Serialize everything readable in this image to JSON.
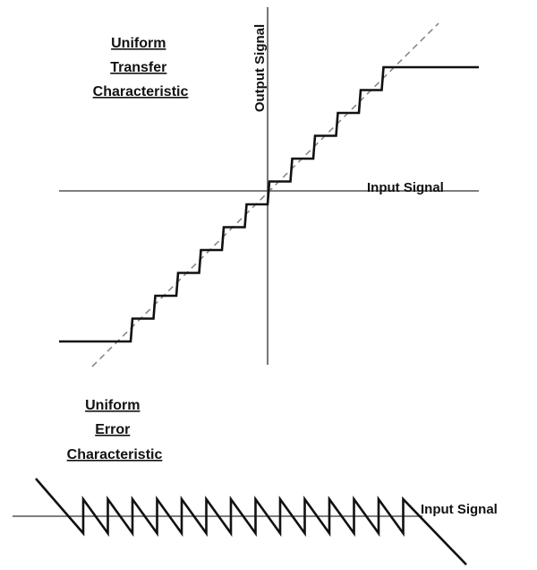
{
  "transfer": {
    "title_lines": [
      "Uniform",
      "Transfer",
      "Characteristic"
    ],
    "y_axis_label": "Output Signal",
    "x_axis_label": "Input Signal"
  },
  "error": {
    "title_lines": [
      "Uniform",
      "Error",
      "Characteristic"
    ],
    "x_axis_label": "Input Signal"
  }
}
